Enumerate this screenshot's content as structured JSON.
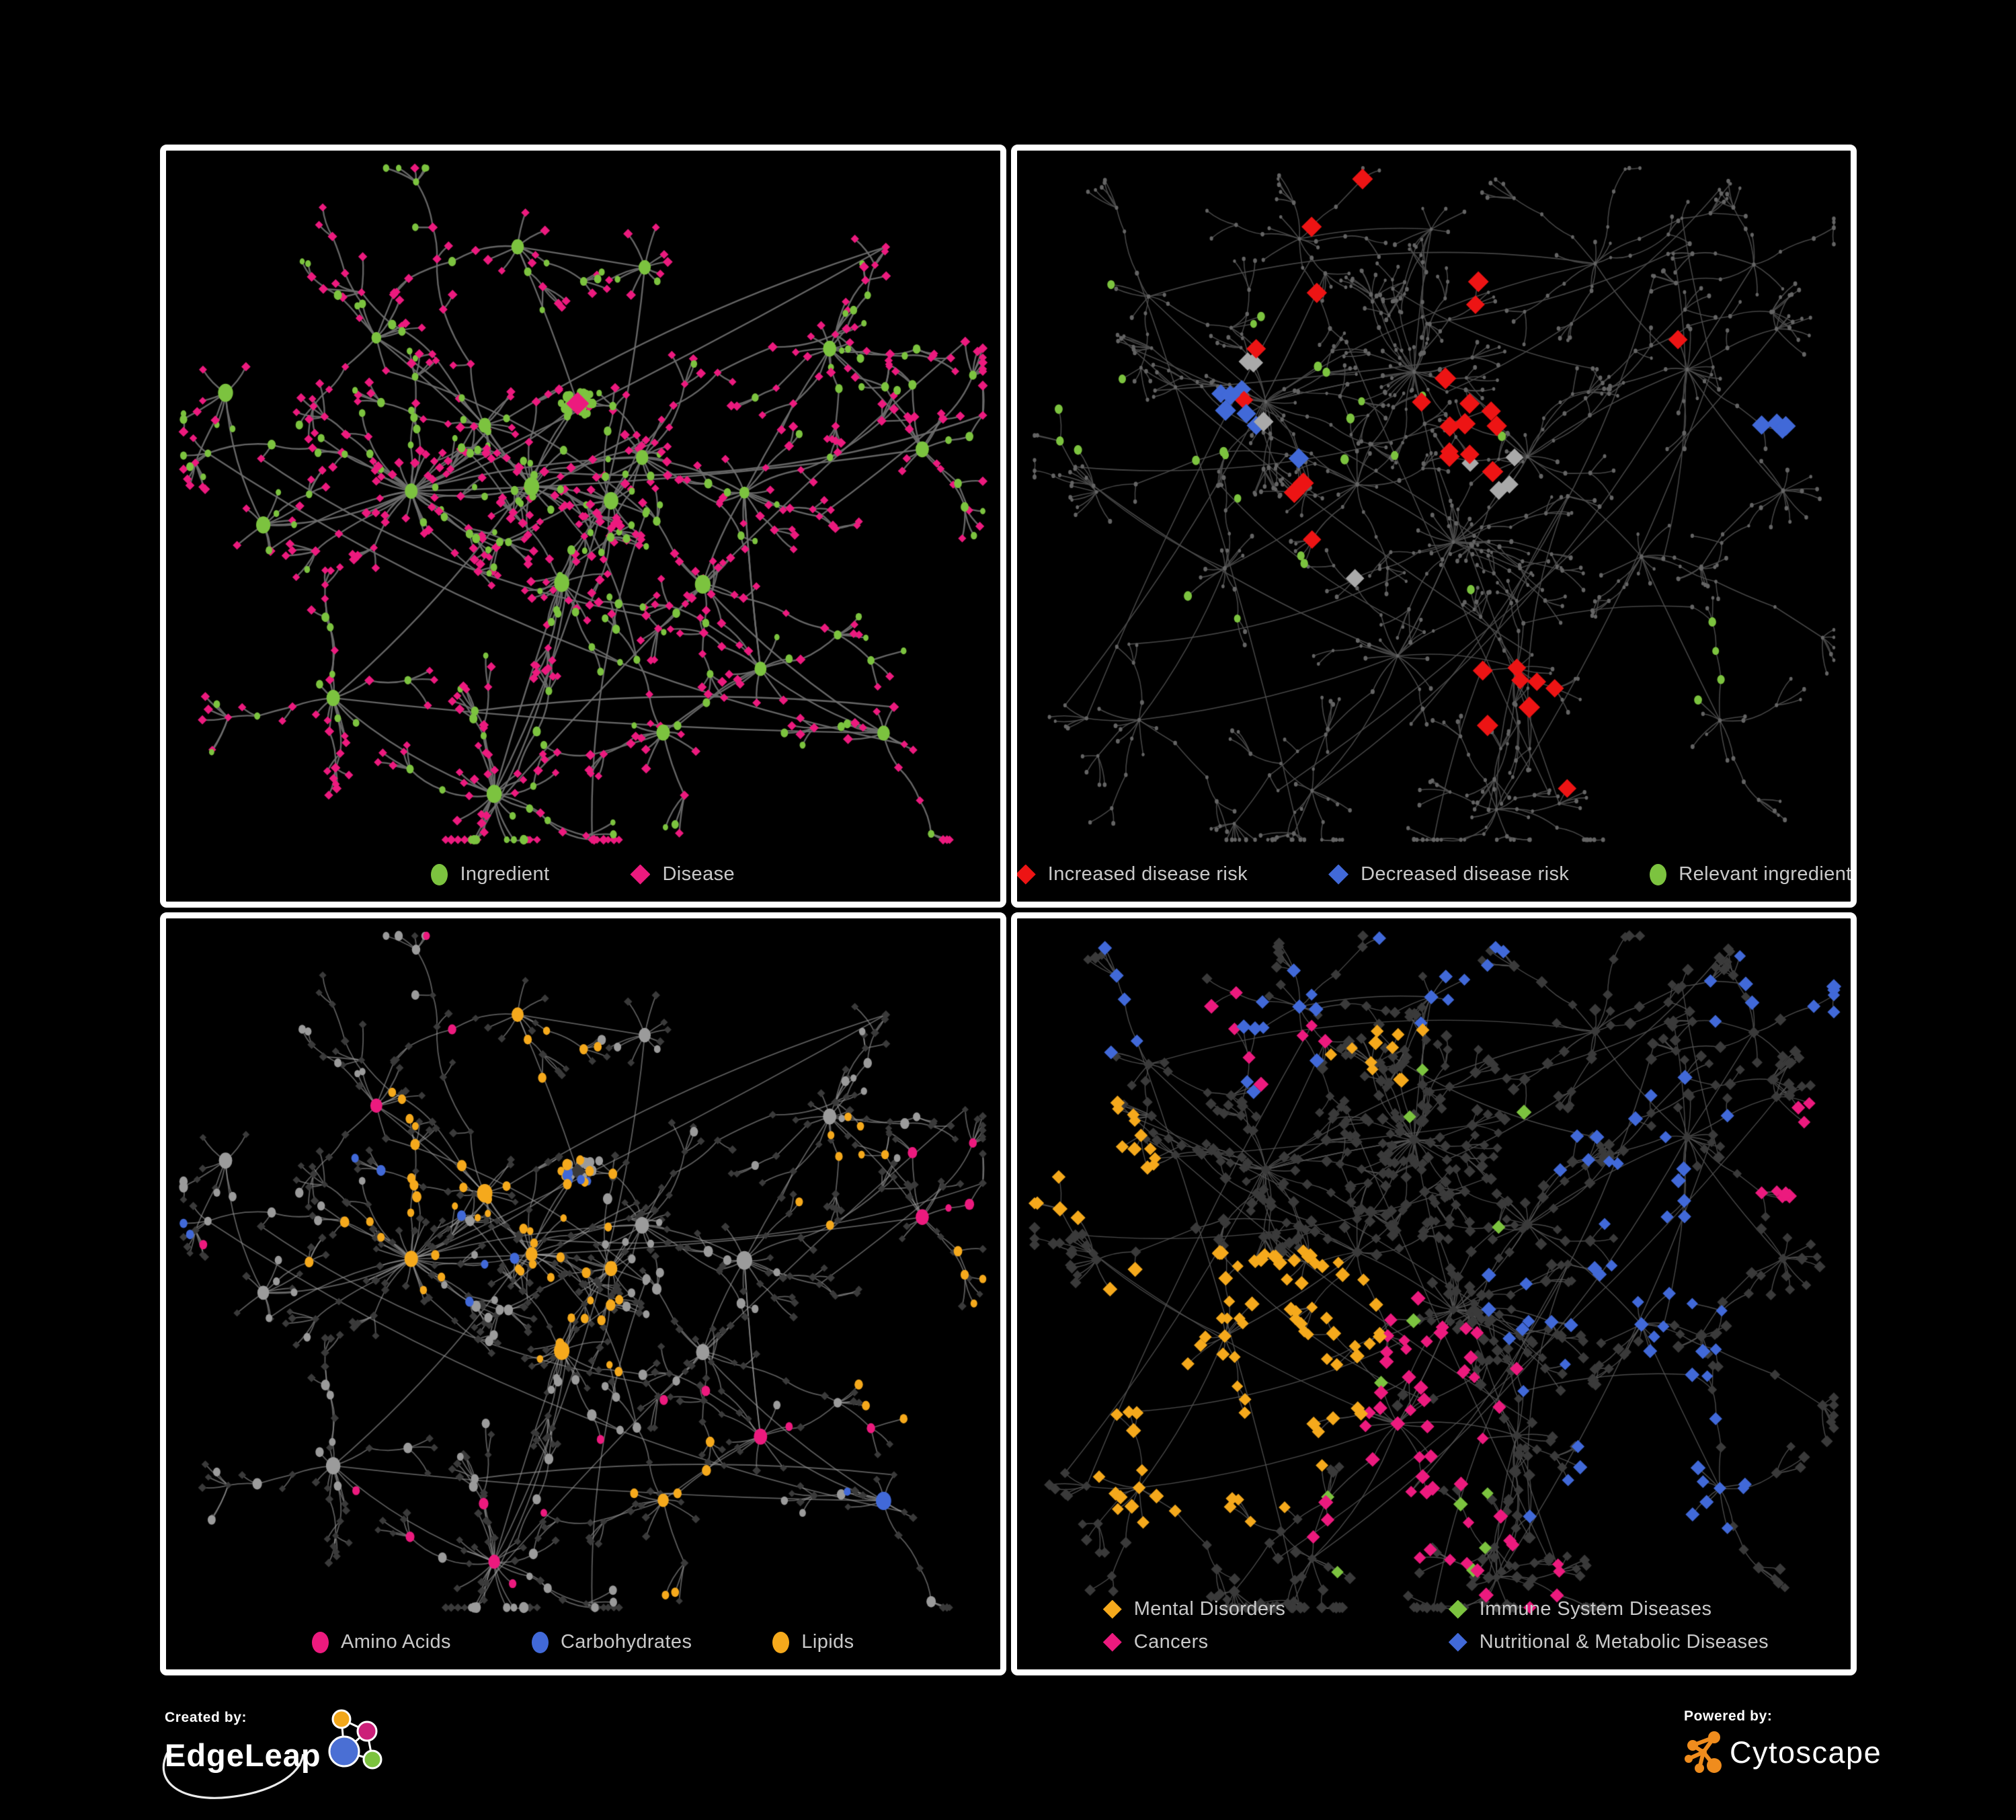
{
  "page": {
    "background": "#000000",
    "frame_color": "#ffffff",
    "panel_background": "#000000",
    "legend_text_color": "#c9c9c9"
  },
  "branding": {
    "created_by_label": "Created by:",
    "created_by_name": "EdgeLeap",
    "powered_by_label": "Powered by:",
    "powered_by_name": "Cytoscape",
    "edgeleap_colors": {
      "orange": "#f2a71b",
      "magenta": "#cc2079",
      "blue": "#4a6fd4",
      "green": "#7cc33f"
    },
    "cytoscape_orange": "#ef8c1d"
  },
  "palette": {
    "green": "#7cc33f",
    "pink": "#ec1a7e",
    "red": "#ed1414",
    "blue": "#4169d8",
    "orange": "#f5a91c",
    "silver": "#a9a9a9",
    "gray_ingredient": "#9b9b9b",
    "dark_diamond": "#3a3a3a",
    "dim_dot": "#666666"
  },
  "networks": {
    "A": {
      "seed": 1337,
      "twigProb": 0.32,
      "runners": 9,
      "cross": 16,
      "hubs": [
        [
          0.3,
          0.46,
          30,
          52
        ],
        [
          0.5,
          0.33,
          26,
          30,
          "core"
        ],
        [
          0.44,
          0.44,
          18,
          52
        ],
        [
          0.53,
          0.47,
          16,
          48
        ],
        [
          0.58,
          0.4,
          13,
          46
        ],
        [
          0.38,
          0.36,
          12,
          46
        ],
        [
          0.48,
          0.57,
          15,
          48
        ],
        [
          0.4,
          0.86,
          22,
          55
        ],
        [
          0.2,
          0.72,
          11,
          48
        ],
        [
          0.12,
          0.5,
          9,
          44
        ],
        [
          0.25,
          0.24,
          11,
          48
        ],
        [
          0.42,
          0.12,
          9,
          44
        ],
        [
          0.57,
          0.16,
          9,
          44
        ],
        [
          0.7,
          0.45,
          11,
          46
        ],
        [
          0.8,
          0.27,
          13,
          46
        ],
        [
          0.9,
          0.4,
          9,
          42
        ],
        [
          0.72,
          0.7,
          11,
          46
        ],
        [
          0.86,
          0.78,
          9,
          44
        ],
        [
          0.6,
          0.78,
          9,
          46
        ],
        [
          0.08,
          0.33,
          7,
          42
        ],
        [
          0.65,
          0.58,
          9,
          44
        ]
      ]
    },
    "B": {
      "seed": 2024,
      "twigProb": 0.42,
      "runners": 14,
      "cross": 22,
      "hubs": [
        [
          0.47,
          0.29,
          30,
          42
        ],
        [
          0.53,
          0.52,
          26,
          44
        ],
        [
          0.29,
          0.33,
          22,
          46
        ],
        [
          0.62,
          0.4,
          14,
          48
        ],
        [
          0.4,
          0.45,
          12,
          48
        ],
        [
          0.25,
          0.55,
          11,
          48
        ],
        [
          0.45,
          0.68,
          12,
          50
        ],
        [
          0.6,
          0.68,
          11,
          48
        ],
        [
          0.75,
          0.55,
          11,
          46
        ],
        [
          0.8,
          0.3,
          11,
          46
        ],
        [
          0.7,
          0.15,
          9,
          44
        ],
        [
          0.5,
          0.1,
          9,
          44
        ],
        [
          0.33,
          0.12,
          9,
          44
        ],
        [
          0.15,
          0.2,
          7,
          42
        ],
        [
          0.1,
          0.45,
          7,
          42
        ],
        [
          0.15,
          0.75,
          9,
          46
        ],
        [
          0.35,
          0.85,
          9,
          46
        ],
        [
          0.58,
          0.88,
          11,
          48
        ],
        [
          0.85,
          0.75,
          9,
          44
        ],
        [
          0.92,
          0.45,
          7,
          42
        ],
        [
          0.88,
          0.15,
          7,
          42
        ]
      ]
    }
  },
  "panels": [
    {
      "name": "ingredient-disease-network",
      "layout": "A",
      "paint": {
        "mode": "binary",
        "pseed": 11,
        "edge": "#6e6e6e",
        "edgeWidth": 2.4,
        "edgeAlpha": 0.92,
        "ingredient": {
          "shape": "circle",
          "color": "#7cc33f",
          "sizes": {
            "hub": [
              8,
              13
            ],
            "coreleaf": [
              5,
              7.5
            ],
            "mid": [
              5,
              7
            ],
            "leaf": [
              4.2,
              6.2
            ]
          }
        },
        "disease": {
          "shape": "diamond",
          "color": "#ec1a7e",
          "sizes": {
            "core": [
              12,
              13
            ],
            "hub": [
              5.5,
              7
            ],
            "other": [
              4,
              5.3
            ]
          }
        }
      },
      "legend": {
        "rows": [
          [
            {
              "label": "Ingredient",
              "shape": "circle",
              "color": "#7cc33f"
            },
            {
              "label": "Disease",
              "shape": "diamond",
              "color": "#ec1a7e"
            }
          ]
        ]
      }
    },
    {
      "name": "disease-risk-network",
      "layout": "B",
      "paint": {
        "mode": "uniform",
        "pseed": 22,
        "edge": "#4c4c4c",
        "edgeWidth": 1.6,
        "edgeAlpha": 0.9,
        "base": {
          "shape": "circle",
          "color": "#646464",
          "size": [
            2.4,
            3.4
          ]
        },
        "cats": [
          {
            "label": "increased-risk",
            "shape": "diamond",
            "color": "#ed1414",
            "size": [
              9.5,
              11.5
            ],
            "count": 30,
            "sigma": 0.045,
            "foci": [
              [
                0.31,
                0.3
              ],
              [
                0.46,
                0.31
              ],
              [
                0.52,
                0.4
              ],
              [
                0.37,
                0.46
              ],
              [
                0.56,
                0.33
              ],
              [
                0.39,
                0.08
              ],
              [
                0.79,
                0.26
              ],
              [
                0.6,
                0.73
              ],
              [
                0.645,
                0.78
              ],
              [
                0.54,
                0.2
              ]
            ]
          },
          {
            "label": "decreased-risk",
            "shape": "diamond",
            "color": "#4169d8",
            "size": [
              9.5,
              11.5
            ],
            "count": 11,
            "sigma": 0.03,
            "foci": [
              [
                0.27,
                0.34
              ],
              [
                0.27,
                0.34
              ],
              [
                0.28,
                0.4
              ],
              [
                0.9,
                0.35
              ],
              [
                0.905,
                0.355
              ]
            ]
          },
          {
            "label": "unchanged",
            "shape": "diamond",
            "color": "#a9a9a9",
            "size": [
              9,
              10.5
            ],
            "count": 8,
            "sigma": 0.035,
            "foci": [
              [
                0.29,
                0.3
              ],
              [
                0.48,
                0.38
              ],
              [
                0.57,
                0.46
              ],
              [
                0.43,
                0.61
              ],
              [
                0.9,
                0.72
              ]
            ]
          },
          {
            "label": "relevant-ingredient",
            "shape": "circle",
            "color": "#7cc33f",
            "size": [
              5.5,
              7
            ],
            "count": 28,
            "sigma": 0.07,
            "foci": [
              [
                0.34,
                0.28
              ],
              [
                0.48,
                0.32
              ],
              [
                0.43,
                0.42
              ],
              [
                0.22,
                0.38
              ],
              [
                0.56,
                0.35
              ],
              [
                0.31,
                0.58
              ],
              [
                0.52,
                0.5
              ],
              [
                0.09,
                0.32
              ],
              [
                0.82,
                0.66
              ]
            ]
          }
        ]
      },
      "legend": {
        "rows": [
          [
            {
              "label": "Increased disease risk",
              "shape": "diamond",
              "color": "#ed1414"
            },
            {
              "label": "Decreased disease risk",
              "shape": "diamond",
              "color": "#4169d8"
            },
            {
              "label": "Relevant ingredient",
              "shape": "circle",
              "color": "#7cc33f"
            }
          ]
        ]
      }
    },
    {
      "name": "ingredient-categories-network",
      "layout": "A",
      "paint": {
        "mode": "binary-cat",
        "pseed": 33,
        "edge": "#9a9a9a",
        "edgeWidth": 1.8,
        "edgeAlpha": 0.6,
        "ingredient": {
          "shape": "circle",
          "color": "#9b9b9b",
          "sizes": {
            "hub": [
              9,
              13
            ],
            "coreleaf": [
              5.5,
              8
            ],
            "mid": [
              6,
              8
            ],
            "leaf": [
              5,
              7
            ]
          }
        },
        "disease": {
          "shape": "diamond",
          "color": "#3a3a3a",
          "sizes": {
            "core": [
              8,
              9
            ],
            "hub": [
              5,
              6
            ],
            "other": [
              3.6,
              4.6
            ]
          }
        },
        "cats": [
          {
            "label": "lipids",
            "shape": "circle",
            "color": "#f5a91c",
            "count": 85,
            "sigma": 0.05,
            "foci": [
              [
                0.46,
                0.38
              ],
              [
                0.42,
                0.22
              ],
              [
                0.36,
                0.3
              ],
              [
                0.5,
                0.56
              ],
              [
                0.61,
                0.78
              ],
              [
                0.81,
                0.32
              ],
              [
                0.3,
                0.44
              ],
              [
                0.95,
                0.59
              ],
              [
                0.48,
                0.48
              ]
            ]
          },
          {
            "label": "amino-acids",
            "shape": "circle",
            "color": "#ec1a7e",
            "count": 21,
            "sigma": 0.04,
            "foci": [
              [
                0.25,
                0.18
              ],
              [
                0.1,
                0.49
              ],
              [
                0.22,
                0.57
              ],
              [
                0.3,
                0.83
              ],
              [
                0.44,
                0.84
              ],
              [
                0.52,
                0.75
              ],
              [
                0.61,
                0.62
              ],
              [
                0.8,
                0.68
              ],
              [
                0.94,
                0.44
              ],
              [
                0.49,
                0.06
              ],
              [
                0.36,
                0.2
              ]
            ]
          },
          {
            "label": "carbohydrates",
            "shape": "circle",
            "color": "#4169d8",
            "count": 15,
            "sigma": 0.04,
            "foci": [
              [
                0.46,
                0.38
              ],
              [
                0.4,
                0.5
              ],
              [
                0.3,
                0.32
              ],
              [
                0.01,
                0.44
              ],
              [
                0.87,
                0.81
              ]
            ]
          }
        ]
      },
      "legend": {
        "rows": [
          [
            {
              "label": "Amino Acids",
              "shape": "circle",
              "color": "#ec1a7e"
            },
            {
              "label": "Carbohydrates",
              "shape": "circle",
              "color": "#4169d8"
            },
            {
              "label": "Lipids",
              "shape": "circle",
              "color": "#f5a91c"
            }
          ]
        ]
      }
    },
    {
      "name": "disease-categories-network",
      "layout": "B",
      "paint": {
        "mode": "uniform",
        "pseed": 44,
        "edge": "#565656",
        "edgeWidth": 1.4,
        "edgeAlpha": 0.85,
        "base": {
          "shape": "diamond",
          "color": "#3a3a3a",
          "size": [
            4.8,
            6.4
          ]
        },
        "cats": [
          {
            "label": "mental-disorders",
            "shape": "diamond",
            "color": "#f5a91c",
            "size": [
              6,
              8
            ],
            "count": 110,
            "sigma": 0.05,
            "foci": [
              [
                0.3,
                0.56
              ],
              [
                0.24,
                0.6
              ],
              [
                0.36,
                0.52
              ],
              [
                0.2,
                0.68
              ],
              [
                0.44,
                0.17
              ],
              [
                0.1,
                0.33
              ],
              [
                0.28,
                0.62
              ]
            ]
          },
          {
            "label": "cancers",
            "shape": "diamond",
            "color": "#ec1a7e",
            "size": [
              6,
              8
            ],
            "count": 70,
            "sigma": 0.05,
            "foci": [
              [
                0.48,
                0.56
              ],
              [
                0.55,
                0.62
              ],
              [
                0.44,
                0.66
              ],
              [
                0.52,
                0.72
              ],
              [
                0.3,
                0.17
              ],
              [
                0.96,
                0.33
              ],
              [
                0.46,
                0.82
              ],
              [
                0.6,
                0.88
              ]
            ]
          },
          {
            "label": "immune-system",
            "shape": "diamond",
            "color": "#7cc33f",
            "size": [
              6,
              8
            ],
            "count": 12,
            "sigma": 0.06,
            "foci": [
              [
                0.47,
                0.22
              ],
              [
                0.39,
                0.54
              ],
              [
                0.58,
                0.3
              ],
              [
                0.5,
                0.82
              ]
            ]
          },
          {
            "label": "nutritional-metabolic",
            "shape": "diamond",
            "color": "#4169d8",
            "size": [
              6,
              8
            ],
            "count": 90,
            "sigma": 0.07,
            "foci": [
              [
                0.3,
                0.13
              ],
              [
                0.85,
                0.3
              ],
              [
                0.64,
                0.53
              ],
              [
                0.76,
                0.75
              ],
              [
                0.96,
                0.08
              ],
              [
                0.16,
                0.1
              ],
              [
                0.72,
                0.3
              ],
              [
                0.8,
                0.55
              ],
              [
                0.56,
                0.08
              ]
            ]
          }
        ]
      },
      "legend": {
        "two_col": true,
        "rows": [
          [
            {
              "label": "Mental Disorders",
              "shape": "diamond",
              "color": "#f5a91c"
            },
            {
              "label": "Immune System Diseases",
              "shape": "diamond",
              "color": "#7cc33f"
            }
          ],
          [
            {
              "label": "Cancers",
              "shape": "diamond",
              "color": "#ec1a7e"
            },
            {
              "label": "Nutritional & Metabolic Diseases",
              "shape": "diamond",
              "color": "#4169d8"
            }
          ]
        ]
      }
    }
  ]
}
